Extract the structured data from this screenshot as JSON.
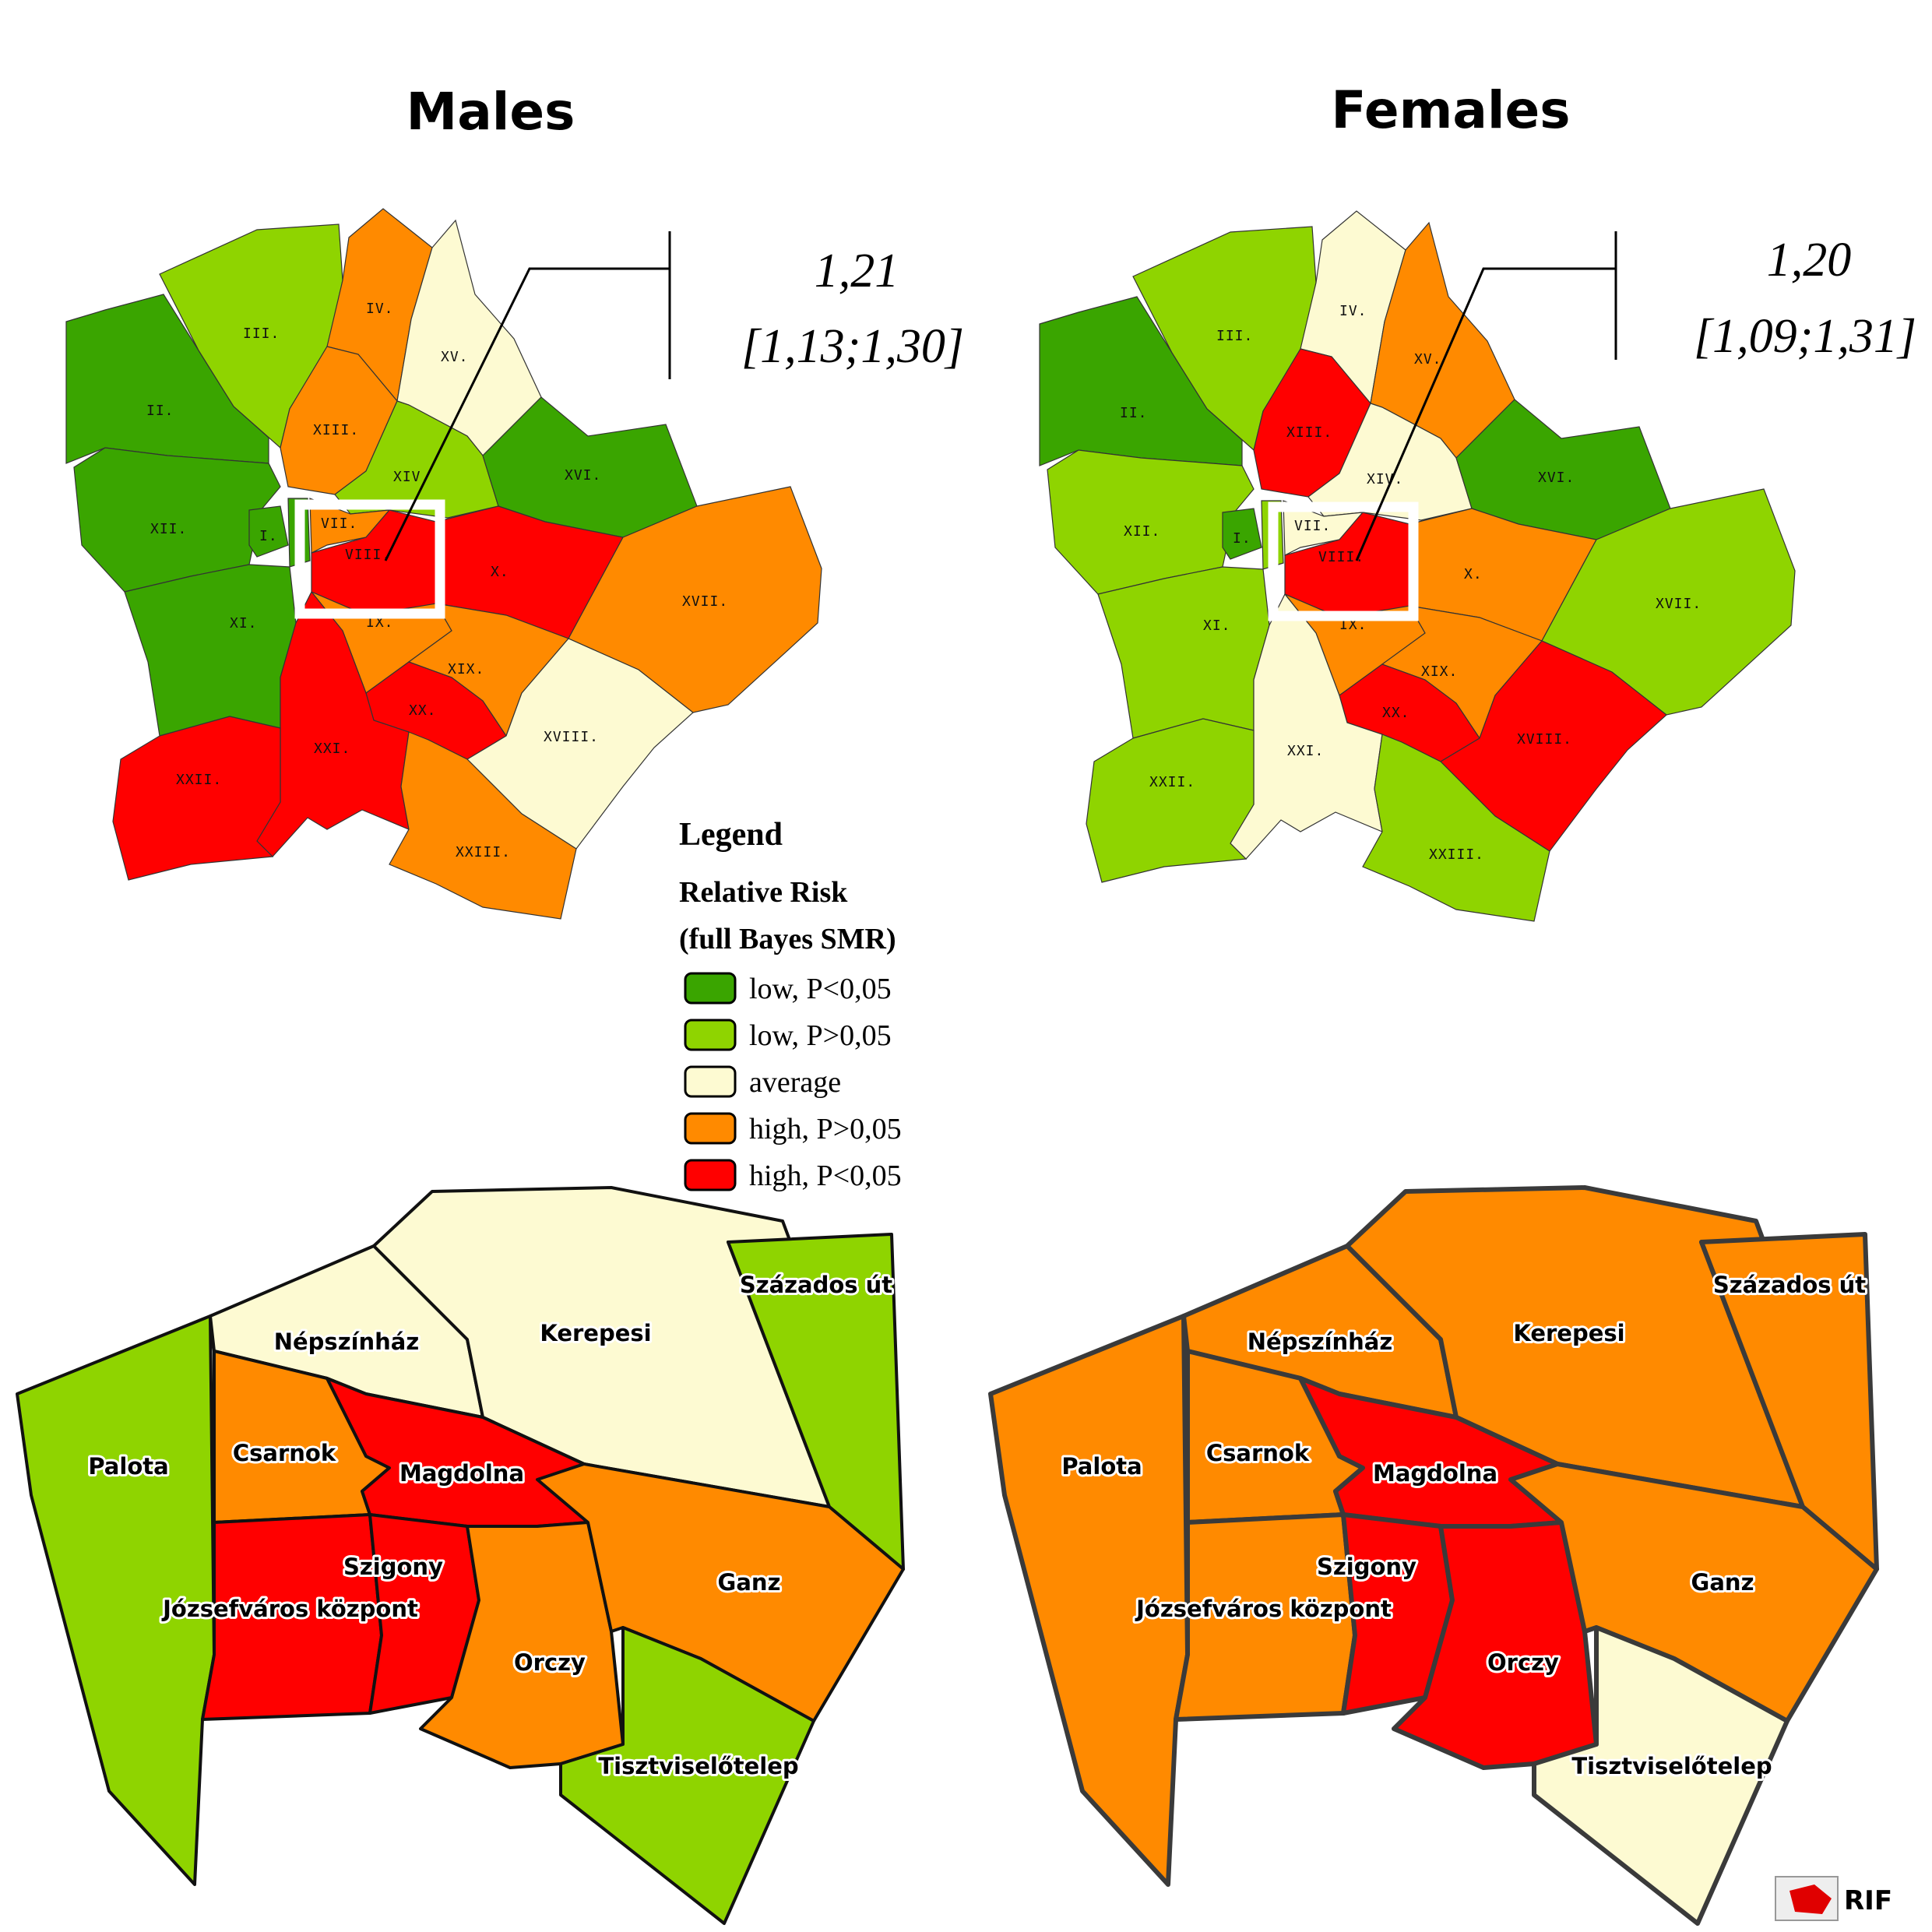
{
  "colors": {
    "low_sig": "#3aa500",
    "low_ns": "#8fd400",
    "average": "#fdfad2",
    "high_ns": "#ff8a00",
    "high_sig": "#ff0000"
  },
  "panels": [
    {
      "title": "Males",
      "estimate": "1,21",
      "interval": "[1,13;1,30]",
      "districts": {
        "II.": "low_sig",
        "III.": "low_ns",
        "IV.": "high_ns",
        "XV.": "average",
        "XIII.": "high_ns",
        "XIV.": "low_ns",
        "XVI.": "low_sig",
        "XII.": "low_sig",
        "I.": "low_sig",
        "V.": "low_sig",
        "VII.": "high_ns",
        "VIII.": "high_sig",
        "X.": "high_sig",
        "XVII.": "high_ns",
        "XI.": "low_sig",
        "IX.": "high_ns",
        "XIX.": "high_ns",
        "XX.": "high_sig",
        "XVIII.": "average",
        "XXI.": "high_sig",
        "XXII.": "high_sig",
        "XXIII.": "high_ns"
      },
      "neighbourhoods": {
        "Palota": "low_ns",
        "Népszínház": "average",
        "Kerepesi": "average",
        "Százados út": "low_ns",
        "Csarnok": "high_ns",
        "Magdolna": "high_sig",
        "Józsefváros központ": "high_sig",
        "Szigony": "high_sig",
        "Orczy": "high_ns",
        "Ganz": "high_ns",
        "Tisztviselőtelep": "low_ns"
      }
    },
    {
      "title": "Females",
      "estimate": "1,20",
      "interval": "[1,09;1,31]",
      "districts": {
        "II.": "low_sig",
        "III.": "low_ns",
        "IV.": "average",
        "XV.": "high_ns",
        "XIII.": "high_sig",
        "XIV.": "average",
        "XVI.": "low_sig",
        "XII.": "low_ns",
        "I.": "low_sig",
        "V.": "low_ns",
        "VII.": "average",
        "VIII.": "high_sig",
        "X.": "high_ns",
        "XVII.": "low_ns",
        "XI.": "low_ns",
        "IX.": "high_ns",
        "XIX.": "high_ns",
        "XX.": "high_sig",
        "XVIII.": "high_sig",
        "XXI.": "average",
        "XXII.": "low_ns",
        "XXIII.": "low_ns"
      },
      "neighbourhoods": {
        "Palota": "high_ns",
        "Népszínház": "high_ns",
        "Kerepesi": "high_ns",
        "Százados út": "high_ns",
        "Csarnok": "high_ns",
        "Magdolna": "high_sig",
        "Józsefváros központ": "high_ns",
        "Szigony": "high_sig",
        "Orczy": "high_sig",
        "Ganz": "high_ns",
        "Tisztviselőtelep": "average"
      }
    }
  ],
  "legend": {
    "title": "Legend",
    "subtitle_1": "Relative Risk",
    "subtitle_2": "(full Bayes SMR)",
    "items": [
      {
        "key": "low_sig",
        "label": "low, P<0,05"
      },
      {
        "key": "low_ns",
        "label": "low, P>0,05"
      },
      {
        "key": "average",
        "label": "average"
      },
      {
        "key": "high_ns",
        "label": "high, P>0,05"
      },
      {
        "key": "high_sig",
        "label": "high, P<0,05"
      }
    ]
  },
  "logo": "RIF"
}
